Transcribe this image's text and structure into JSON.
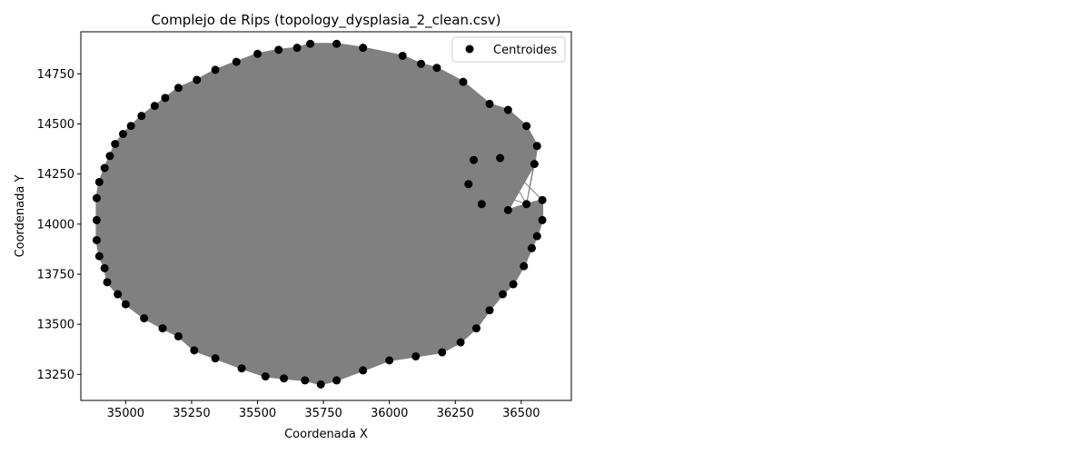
{
  "chart_data": {
    "type": "scatter",
    "title": "Complejo de Rips (topology_dysplasia_2_clean.csv)",
    "xlabel": "Coordenada X",
    "ylabel": "Coordenada Y",
    "xlim": [
      34830,
      36690
    ],
    "ylim": [
      13120,
      14960
    ],
    "xticks": [
      35000,
      35250,
      35500,
      35750,
      36000,
      36250,
      36500
    ],
    "yticks": [
      13250,
      13500,
      13750,
      14000,
      14250,
      14500,
      14750
    ],
    "grid": false,
    "legend": {
      "position": "top-right",
      "entries": [
        "Centroides"
      ]
    },
    "colors": {
      "points": "#000000",
      "edges": "#808080",
      "frame": "#000000"
    },
    "series": [
      {
        "name": "Centroides",
        "boundary_points": [
          [
            35700,
            14900
          ],
          [
            35800,
            14900
          ],
          [
            35900,
            14880
          ],
          [
            36050,
            14840
          ],
          [
            36120,
            14800
          ],
          [
            36180,
            14780
          ],
          [
            36280,
            14710
          ],
          [
            36380,
            14600
          ],
          [
            36450,
            14570
          ],
          [
            36520,
            14490
          ],
          [
            36560,
            14390
          ],
          [
            36550,
            14300
          ],
          [
            36450,
            14070
          ],
          [
            36520,
            14100
          ],
          [
            36580,
            14120
          ],
          [
            36580,
            14020
          ],
          [
            36560,
            13940
          ],
          [
            36540,
            13880
          ],
          [
            36510,
            13790
          ],
          [
            36470,
            13700
          ],
          [
            36430,
            13650
          ],
          [
            36380,
            13570
          ],
          [
            36330,
            13480
          ],
          [
            36270,
            13410
          ],
          [
            36200,
            13360
          ],
          [
            36100,
            13340
          ],
          [
            36000,
            13320
          ],
          [
            35900,
            13270
          ],
          [
            35800,
            13220
          ],
          [
            35740,
            13200
          ],
          [
            35680,
            13220
          ],
          [
            35600,
            13230
          ],
          [
            35530,
            13240
          ],
          [
            35440,
            13280
          ],
          [
            35340,
            13330
          ],
          [
            35260,
            13370
          ],
          [
            35200,
            13440
          ],
          [
            35140,
            13480
          ],
          [
            35070,
            13530
          ],
          [
            35000,
            13600
          ],
          [
            34970,
            13650
          ],
          [
            34930,
            13710
          ],
          [
            34920,
            13780
          ],
          [
            34900,
            13840
          ],
          [
            34890,
            13920
          ],
          [
            34890,
            14020
          ],
          [
            34890,
            14130
          ],
          [
            34900,
            14210
          ],
          [
            34920,
            14280
          ],
          [
            34940,
            14340
          ],
          [
            34960,
            14400
          ],
          [
            34990,
            14450
          ],
          [
            35020,
            14490
          ],
          [
            35060,
            14540
          ],
          [
            35110,
            14590
          ],
          [
            35150,
            14630
          ],
          [
            35200,
            14680
          ],
          [
            35270,
            14720
          ],
          [
            35340,
            14770
          ],
          [
            35420,
            14810
          ],
          [
            35500,
            14850
          ],
          [
            35580,
            14870
          ],
          [
            35650,
            14880
          ],
          [
            36320,
            14320
          ],
          [
            36420,
            14330
          ],
          [
            36300,
            14200
          ],
          [
            36350,
            14100
          ]
        ]
      }
    ]
  }
}
